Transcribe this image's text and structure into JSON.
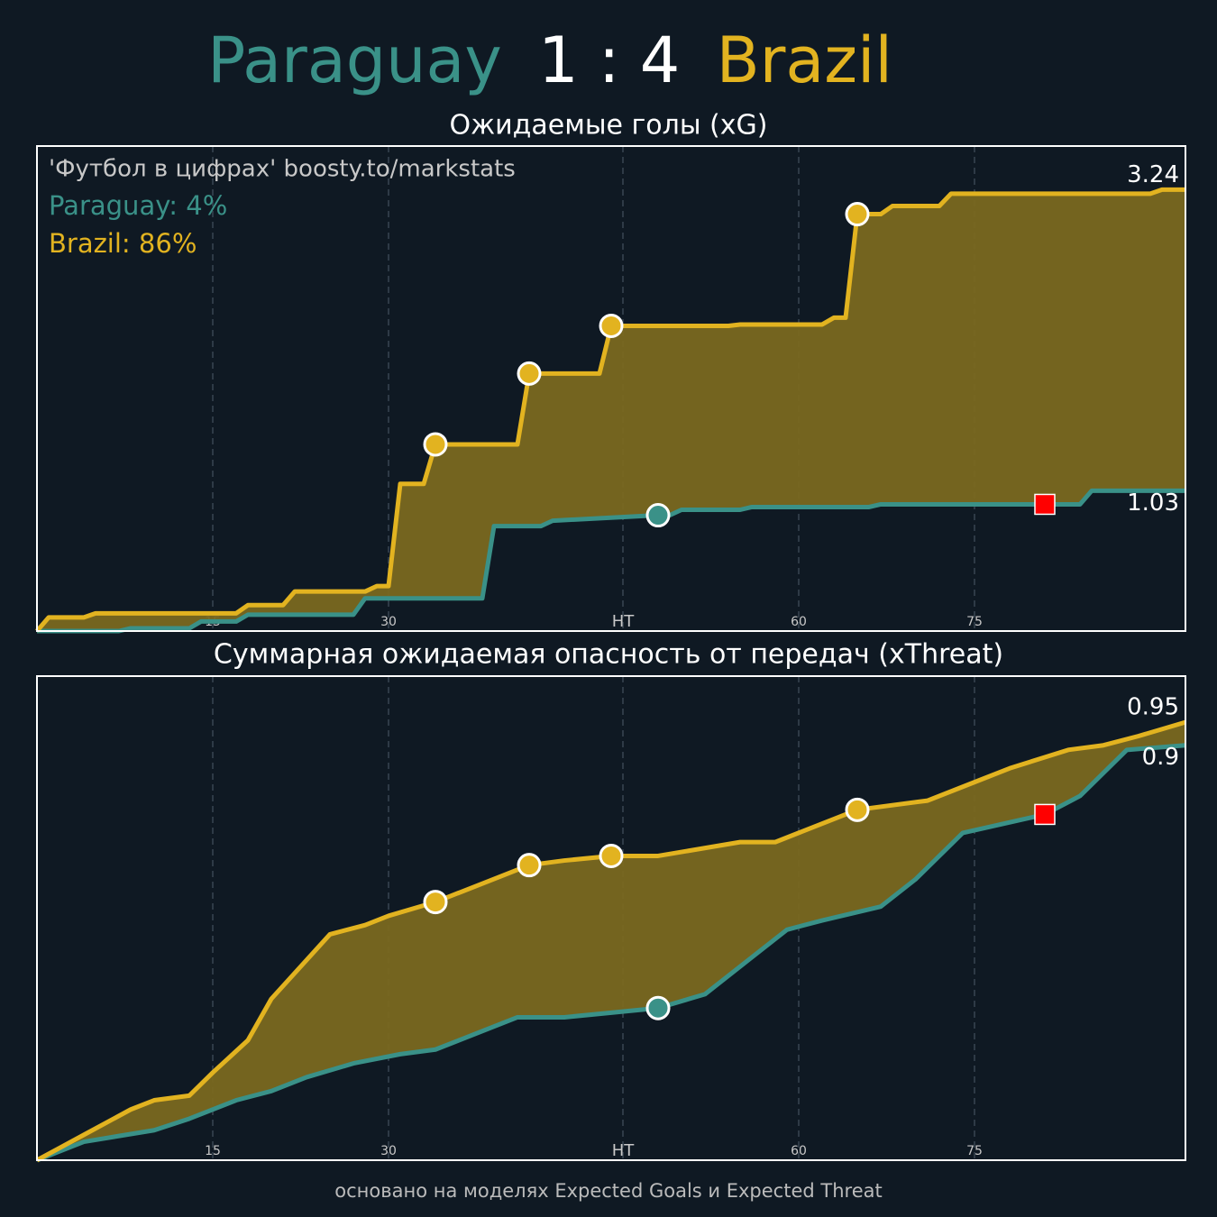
{
  "header": {
    "home": "Paraguay",
    "home_score": 1,
    "away_score": 4,
    "away": "Brazil",
    "home_color": "#3a9188",
    "away_color": "#e2b320"
  },
  "chart_data": [
    {
      "type": "line",
      "title": "Ожидаемые голы (xG)",
      "annotations": [
        "'Футбол в цифрах' boosty.to/markstats",
        "Paraguay: 4%",
        "Brazil: 86%"
      ],
      "annotation_colors": [
        "#c8c8c8",
        "#3a9188",
        "#e2b320"
      ],
      "xlim": [
        0,
        98
      ],
      "ylim": [
        0,
        3.56
      ],
      "xticks": [
        15,
        30,
        {
          "value": 50,
          "label": "HT"
        },
        {
          "value": 65,
          "label": "60"
        },
        {
          "value": 80,
          "label": "75"
        }
      ],
      "grid": true,
      "fill_color": "#7a6820",
      "card_color": "#ff0000",
      "series": [
        {
          "color": "#3a9188",
          "x": [
            0,
            7,
            8,
            13,
            14,
            17,
            18,
            27,
            28,
            38,
            39,
            43,
            44,
            53,
            54,
            55,
            60,
            61,
            71,
            72,
            89,
            90,
            98
          ],
          "values": [
            0,
            0,
            0.02,
            0.02,
            0.07,
            0.07,
            0.12,
            0.12,
            0.24,
            0.24,
            0.77,
            0.77,
            0.81,
            0.85,
            0.85,
            0.89,
            0.89,
            0.91,
            0.91,
            0.93,
            0.93,
            1.03,
            1.03
          ],
          "goals": [
            53
          ],
          "red_cards": [
            86
          ]
        },
        {
          "color": "#e2b320",
          "x": [
            0,
            1,
            4,
            5,
            17,
            18,
            21,
            22,
            28,
            29,
            30,
            31,
            33,
            34,
            41,
            42,
            48,
            49,
            59,
            60,
            67,
            68,
            69,
            70,
            72,
            73,
            77,
            78,
            95,
            96,
            98
          ],
          "values": [
            0,
            0.1,
            0.1,
            0.13,
            0.13,
            0.19,
            0.19,
            0.29,
            0.29,
            0.33,
            0.33,
            1.08,
            1.08,
            1.37,
            1.37,
            1.89,
            1.89,
            2.24,
            2.24,
            2.25,
            2.25,
            2.3,
            2.3,
            3.06,
            3.06,
            3.12,
            3.12,
            3.21,
            3.21,
            3.24,
            3.24
          ],
          "goals": [
            34,
            42,
            49,
            70
          ],
          "red_cards": []
        }
      ]
    },
    {
      "type": "line",
      "title": "Суммарная ожидаемая опасность от передач (xThreat)",
      "xlim": [
        0,
        98
      ],
      "ylim": [
        0,
        1.05
      ],
      "xticks": [
        15,
        30,
        {
          "value": 50,
          "label": "HT"
        },
        {
          "value": 65,
          "label": "60"
        },
        {
          "value": 80,
          "label": "75"
        }
      ],
      "grid": true,
      "fill_color": "#7a6820",
      "card_color": "#ff0000",
      "series": [
        {
          "color": "#3a9188",
          "x": [
            0,
            4,
            10,
            13,
            17,
            20,
            23,
            27,
            31,
            34,
            41,
            45,
            49,
            53,
            57,
            61,
            64,
            67,
            72,
            75,
            79,
            86,
            89,
            93,
            98
          ],
          "values": [
            0,
            0.04,
            0.065,
            0.09,
            0.13,
            0.15,
            0.18,
            0.21,
            0.23,
            0.24,
            0.31,
            0.31,
            0.32,
            0.33,
            0.36,
            0.44,
            0.5,
            0.52,
            0.55,
            0.61,
            0.71,
            0.75,
            0.79,
            0.89,
            0.9
          ],
          "goals": [
            53
          ],
          "red_cards": [
            86
          ]
        },
        {
          "color": "#e2b320",
          "x": [
            0,
            4,
            8,
            10,
            13,
            15,
            18,
            20,
            25,
            28,
            30,
            34,
            38,
            42,
            45,
            49,
            53,
            60,
            63,
            65,
            70,
            76,
            80,
            83,
            88,
            91,
            94,
            98
          ],
          "values": [
            0,
            0.055,
            0.11,
            0.13,
            0.14,
            0.19,
            0.26,
            0.35,
            0.49,
            0.51,
            0.53,
            0.56,
            0.6,
            0.64,
            0.65,
            0.66,
            0.66,
            0.69,
            0.69,
            0.71,
            0.76,
            0.78,
            0.82,
            0.85,
            0.89,
            0.9,
            0.92,
            0.95
          ],
          "goals": [
            34,
            42,
            49,
            70
          ],
          "red_cards": []
        }
      ]
    }
  ],
  "footer": "основано на моделях Expected Goals и Expected Threat"
}
